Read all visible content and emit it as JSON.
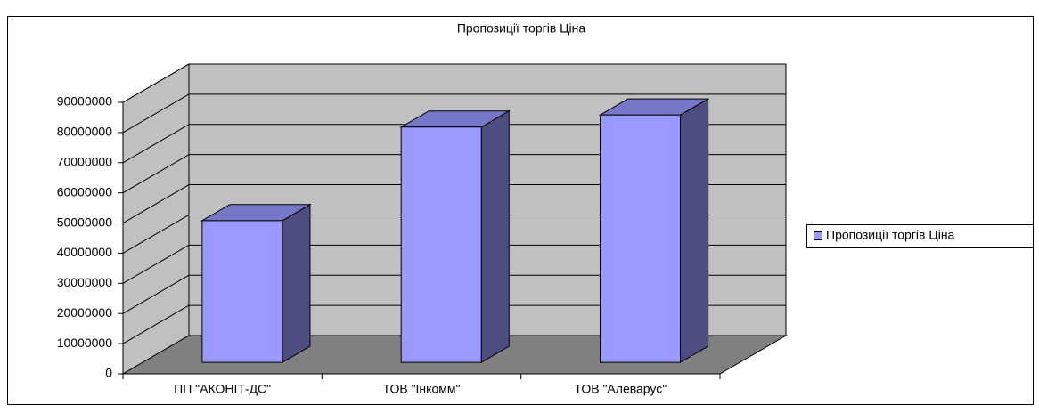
{
  "chart_data": {
    "type": "bar3d",
    "title": "Пропозиції торгів Ціна",
    "categories": [
      "ПП \"АКОНІТ-ДС\"",
      "ТОВ \"Інкомм\"",
      "ТОВ \"Алеварус\""
    ],
    "series": [
      {
        "name": "Пропозиції торгів Ціна",
        "color": "#9999ff",
        "values": [
          47000000,
          78000000,
          82000000
        ]
      }
    ],
    "ylim": [
      0,
      90000000
    ],
    "yticks": [
      0,
      10000000,
      20000000,
      30000000,
      40000000,
      50000000,
      60000000,
      70000000,
      80000000,
      90000000
    ],
    "grid": true,
    "legend": "right"
  }
}
